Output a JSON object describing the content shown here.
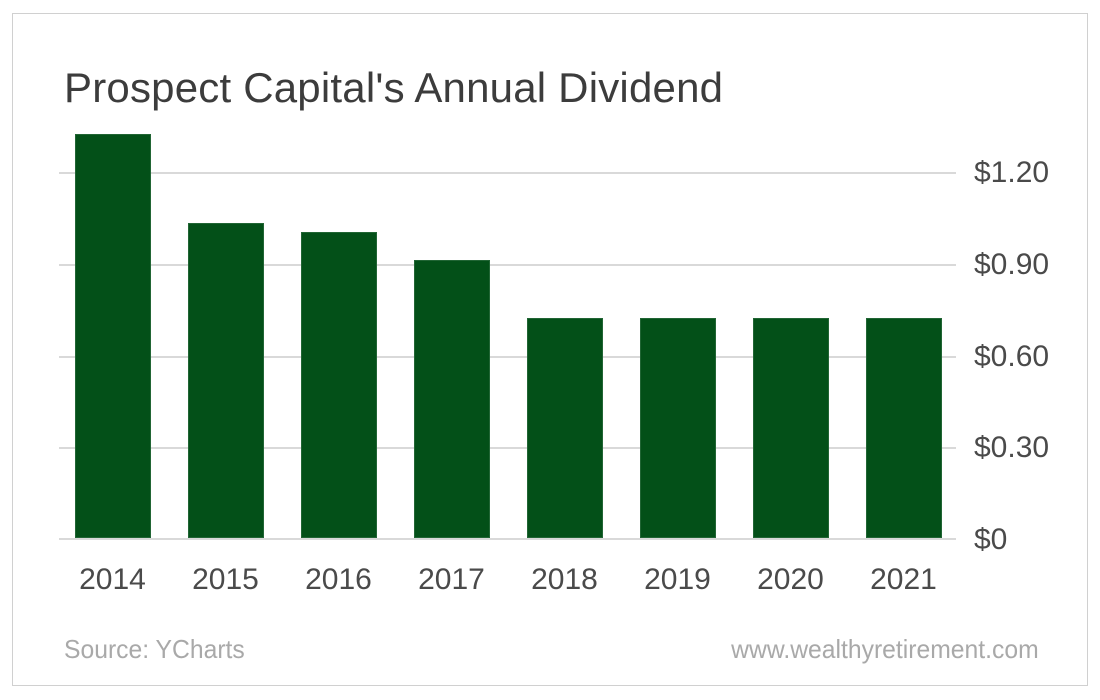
{
  "title": "Prospect Capital's Annual Dividend",
  "footer": {
    "source": "Source: YCharts",
    "website": "www.wealthyretirement.com"
  },
  "colors": {
    "bar": "#035018",
    "grid": "#d9d9d9",
    "axis": "#cfcfcf",
    "card_border": "#d0d0d0",
    "title_text": "#3c3c3c",
    "label_text": "#4a4a4a",
    "footer_text": "#a9a9a9"
  },
  "chart_data": {
    "type": "bar",
    "title": "Prospect Capital's Annual Dividend",
    "categories": [
      "2014",
      "2015",
      "2016",
      "2017",
      "2018",
      "2019",
      "2020",
      "2021"
    ],
    "values": [
      1.32,
      1.03,
      1.0,
      0.91,
      0.72,
      0.72,
      0.72,
      0.72
    ],
    "xlabel": "",
    "ylabel": "",
    "ylim": [
      0,
      1.35
    ],
    "grid": "horizontal",
    "y_axis_side": "right",
    "y_ticks": [
      {
        "value": 1.2,
        "label": "$1.20"
      },
      {
        "value": 0.9,
        "label": "$0.90"
      },
      {
        "value": 0.6,
        "label": "$0.60"
      },
      {
        "value": 0.3,
        "label": "$0.30"
      },
      {
        "value": 0.0,
        "label": "$0"
      }
    ],
    "legend": "none"
  }
}
